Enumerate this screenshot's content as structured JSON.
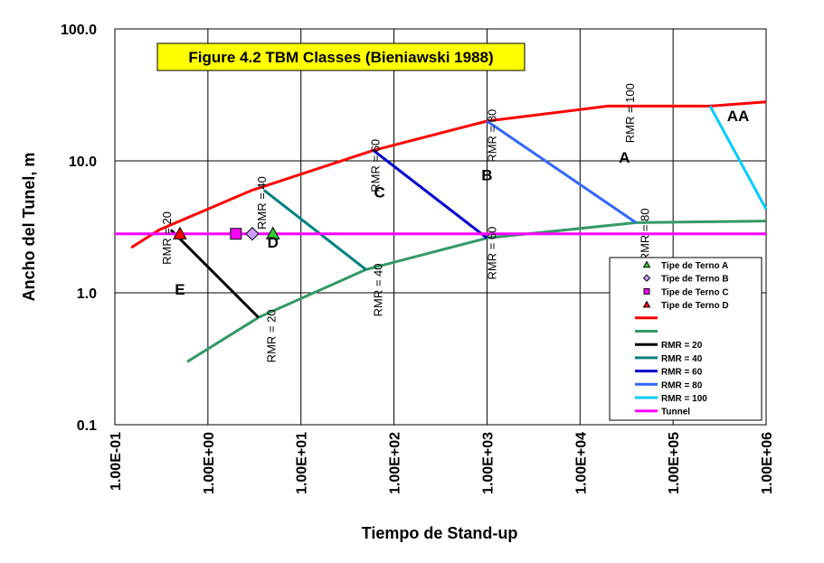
{
  "chart_data": {
    "type": "line",
    "title": "Figure 4.2 TBM Classes (Bieniawski 1988)",
    "xlabel": "Tiempo de Stand-up",
    "ylabel": "Ancho del Tunel, m",
    "x_scale": "log",
    "y_scale": "log",
    "xlim": [
      0.1,
      1000000
    ],
    "ylim": [
      0.1,
      100
    ],
    "grid": true,
    "x_ticks": [
      0.1,
      1,
      10,
      100,
      1000,
      10000,
      100000,
      1000000
    ],
    "x_tick_labels": [
      "1.00E-01",
      "1.00E+00",
      "1.00E+01",
      "1.00E+02",
      "1.00E+03",
      "1.00E+04",
      "1.00E+05",
      "1.00E+06"
    ],
    "y_ticks": [
      0.1,
      1,
      10,
      100
    ],
    "y_tick_labels": [
      "0.1",
      "1.0",
      "10.0",
      "100.0"
    ],
    "legend_position": "bottom-right",
    "series": [
      {
        "label": "Tipe de Terno A",
        "kind": "marker",
        "marker": "triangle",
        "color": "#33cc33",
        "points": [
          [
            5,
            2.8
          ]
        ]
      },
      {
        "label": "Tipe de Terno B",
        "kind": "marker",
        "marker": "diamond",
        "color": "#cc99ff",
        "points": [
          [
            3,
            2.8
          ]
        ]
      },
      {
        "label": "Tipe de Terno C",
        "kind": "marker",
        "marker": "square",
        "color": "#ff00ff",
        "points": [
          [
            2,
            2.8
          ]
        ]
      },
      {
        "label": "Tipe de Terno D",
        "kind": "marker",
        "marker": "triangle",
        "color": "#ff0000",
        "points": [
          [
            0.5,
            2.8
          ]
        ]
      },
      {
        "label": "",
        "kind": "line",
        "color": "#ff0000",
        "points": [
          [
            0.15,
            2.2
          ],
          [
            0.3,
            3.0
          ],
          [
            3,
            6
          ],
          [
            60,
            12
          ],
          [
            1000,
            20
          ],
          [
            20000,
            26
          ],
          [
            250000,
            26
          ],
          [
            1000000,
            28
          ]
        ]
      },
      {
        "label": "",
        "kind": "line",
        "color": "#339966",
        "points": [
          [
            0.6,
            0.3
          ],
          [
            3.5,
            0.65
          ],
          [
            50,
            1.5
          ],
          [
            1000,
            2.6
          ],
          [
            40000,
            3.4
          ],
          [
            1000000,
            3.5
          ]
        ]
      },
      {
        "label": "RMR = 20",
        "kind": "line",
        "color": "#000000",
        "points": [
          [
            0.4,
            3.0
          ],
          [
            3.5,
            0.65
          ]
        ]
      },
      {
        "label": "RMR = 40",
        "kind": "line",
        "color": "#008080",
        "points": [
          [
            4,
            6
          ],
          [
            50,
            1.5
          ]
        ]
      },
      {
        "label": "RMR = 60",
        "kind": "line",
        "color": "#0000cc",
        "points": [
          [
            60,
            12
          ],
          [
            1000,
            2.6
          ]
        ]
      },
      {
        "label": "RMR = 80",
        "kind": "line",
        "color": "#3366ff",
        "points": [
          [
            1000,
            20
          ],
          [
            40000,
            3.4
          ]
        ]
      },
      {
        "label": "RMR = 100",
        "kind": "line",
        "color": "#00ccff",
        "points": [
          [
            250000,
            26
          ],
          [
            1000000,
            4.3
          ]
        ]
      },
      {
        "label": "Tunnel",
        "kind": "line",
        "color": "#ff00ff",
        "points": [
          [
            0.1,
            2.8
          ],
          [
            1000000,
            2.8
          ]
        ]
      }
    ],
    "annotations": [
      {
        "text": "RMR = 20",
        "x": 0.4,
        "y": 2.6,
        "rotate": true
      },
      {
        "text": "RMR = 40",
        "x": 4.2,
        "y": 4.8,
        "rotate": true
      },
      {
        "text": "RMR = 60",
        "x": 70,
        "y": 9.2,
        "rotate": true
      },
      {
        "text": "RMR = 80",
        "x": 1250,
        "y": 15.5,
        "rotate": true
      },
      {
        "text": "RMR = 100",
        "x": 38000,
        "y": 23,
        "rotate": true
      },
      {
        "text": "RMR = 20",
        "x": 5.3,
        "y": 0.47,
        "rotate": true
      },
      {
        "text": "RMR = 40",
        "x": 75,
        "y": 1.05,
        "rotate": true
      },
      {
        "text": "RMR = 60",
        "x": 1250,
        "y": 2.0,
        "rotate": true
      },
      {
        "text": "RMR = 80",
        "x": 55000,
        "y": 2.75,
        "rotate": true
      },
      {
        "text": "AA",
        "x": 500000,
        "y": 20,
        "rotate": false
      },
      {
        "text": "A",
        "x": 30000,
        "y": 9.7,
        "rotate": false
      },
      {
        "text": "B",
        "x": 1000,
        "y": 7.1,
        "rotate": false
      },
      {
        "text": "C",
        "x": 70,
        "y": 5.3,
        "rotate": false
      },
      {
        "text": "D",
        "x": 5,
        "y": 2.2,
        "rotate": false
      },
      {
        "text": "E",
        "x": 0.5,
        "y": 0.97,
        "rotate": false
      }
    ],
    "colors": {
      "title_box": "#ffff00",
      "grid": "#000000"
    }
  }
}
